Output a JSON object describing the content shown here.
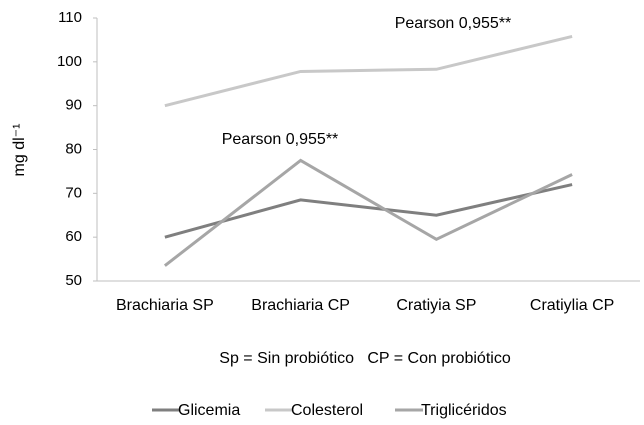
{
  "chart_data": {
    "type": "line",
    "y_label": "mg dl⁻¹",
    "categories": [
      "Brachiaria SP",
      "Brachiaria CP",
      "Cratiyia SP",
      "Cratiylia CP"
    ],
    "series": [
      {
        "name": "Glicemia",
        "color": "#7f7f7f",
        "values": [
          60,
          68.5,
          65,
          72
        ]
      },
      {
        "name": "Colesterol",
        "color": "#c8c8c8",
        "values": [
          90,
          97.8,
          98.3,
          105.8
        ]
      },
      {
        "name": "Triglicéridos",
        "color": "#a6a6a6",
        "values": [
          53.5,
          77.5,
          59.5,
          74.3
        ]
      }
    ],
    "ylim": [
      50,
      110
    ],
    "yticks": [
      50,
      60,
      70,
      80,
      90,
      100,
      110
    ],
    "annotations": [
      "Pearson 0,955**",
      "Pearson 0,955**"
    ],
    "note": "Sp = Sin probiótico   CP = Con probiótico",
    "legend": "bottom"
  }
}
